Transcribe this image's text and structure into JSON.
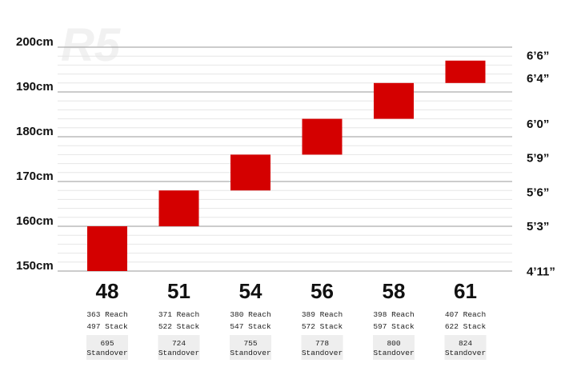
{
  "watermark": "R5",
  "colors": {
    "bar": "#d40000",
    "grid_major": "#9a9a9a",
    "grid_minor": "#e6e6e6",
    "standover_bg": "#eeeeee"
  },
  "chart_data": {
    "type": "bar",
    "subtype": "floating-range",
    "title": "",
    "xlabel": "",
    "ylabel": "",
    "ylim": [
      150,
      200
    ],
    "y_unit": "cm",
    "left_ticks": [
      {
        "value": 200,
        "label": "200cm"
      },
      {
        "value": 190,
        "label": "190cm"
      },
      {
        "value": 180,
        "label": "180cm"
      },
      {
        "value": 170,
        "label": "170cm"
      },
      {
        "value": 160,
        "label": "160cm"
      },
      {
        "value": 150,
        "label": "150cm"
      }
    ],
    "right_ticks": [
      {
        "value": 198.1,
        "label": "6’6”"
      },
      {
        "value": 193.0,
        "label": "6’4”"
      },
      {
        "value": 182.9,
        "label": "6’0”"
      },
      {
        "value": 175.3,
        "label": "5’9”"
      },
      {
        "value": 167.6,
        "label": "5’6”"
      },
      {
        "value": 160.0,
        "label": "5’3”"
      },
      {
        "value": 149.9,
        "label": "4’11”"
      }
    ],
    "categories": [
      "48",
      "51",
      "54",
      "56",
      "58",
      "61"
    ],
    "ranges": [
      {
        "low": 150,
        "high": 160
      },
      {
        "low": 160,
        "high": 168
      },
      {
        "low": 168,
        "high": 176
      },
      {
        "low": 176,
        "high": 184
      },
      {
        "low": 184,
        "high": 192
      },
      {
        "low": 192,
        "high": 197
      }
    ],
    "geometry": [
      {
        "reach": "363 Reach",
        "stack": "497 Stack",
        "standover_value": "695",
        "standover_label": "Standover"
      },
      {
        "reach": "371 Reach",
        "stack": "522 Stack",
        "standover_value": "724",
        "standover_label": "Standover"
      },
      {
        "reach": "380 Reach",
        "stack": "547 Stack",
        "standover_value": "755",
        "standover_label": "Standover"
      },
      {
        "reach": "389 Reach",
        "stack": "572 Stack",
        "standover_value": "778",
        "standover_label": "Standover"
      },
      {
        "reach": "398 Reach",
        "stack": "597 Stack",
        "standover_value": "800",
        "standover_label": "Standover"
      },
      {
        "reach": "407 Reach",
        "stack": "622 Stack",
        "standover_value": "824",
        "standover_label": "Standover"
      }
    ]
  }
}
